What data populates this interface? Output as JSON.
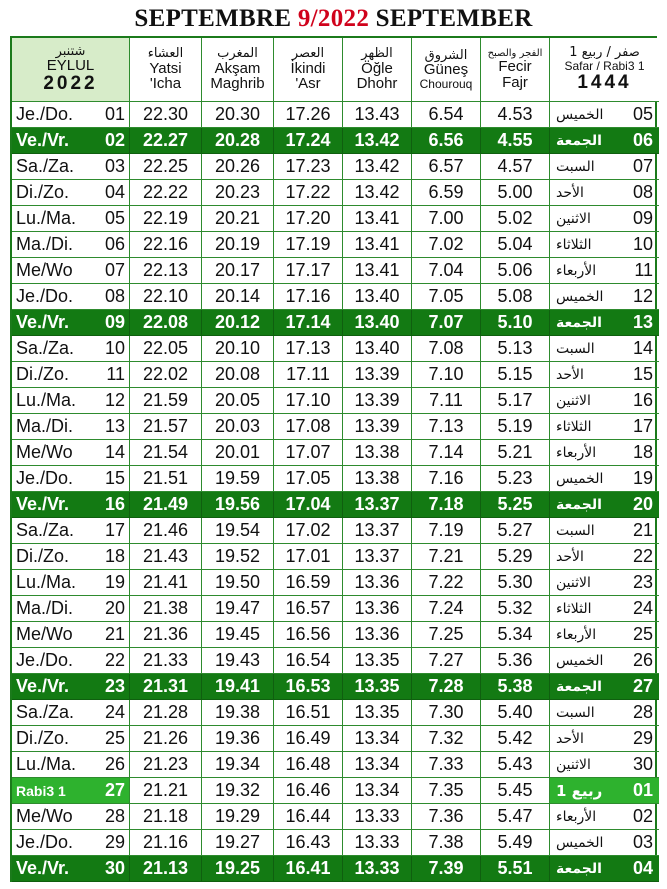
{
  "title": {
    "left": "SEPTEMBRE ",
    "red": "9/2022",
    "right": " SEPTEMBER"
  },
  "header": {
    "month": {
      "ar": "شتنبر",
      "tr": "EYLUL",
      "year": "2022"
    },
    "isha": {
      "ar": "العشاء",
      "l1": "Yatsi",
      "l2": "'Icha"
    },
    "maghrib": {
      "ar": "المغرب",
      "l1": "Akşam",
      "l2": "Maghrib"
    },
    "asr": {
      "ar": "العصر",
      "l1": "İkindi",
      "l2": "'Asr"
    },
    "dhohr": {
      "ar": "الظهر",
      "l1": "Öğle",
      "l2": "Dhohr"
    },
    "chourouq": {
      "ar": "الشروق",
      "l1": "Güneş",
      "l2": "Chourouq"
    },
    "fajr": {
      "ar": "الفجر والصبح",
      "l1": "Fecir",
      "l2": "Fajr"
    },
    "hijri": {
      "ar": "صفر / ربيع 1",
      "l1": "Safar / Rabi3 1",
      "year": "1444"
    }
  },
  "rows": [
    {
      "day": "Je./Do.",
      "d": "01",
      "isha": "22.30",
      "maghrib": "20.30",
      "asr": "17.26",
      "dhohr": "13.43",
      "sunrise": "6.54",
      "fajr": "4.53",
      "ar": "الخميس",
      "h": "05"
    },
    {
      "day": "Ve./Vr.",
      "d": "02",
      "isha": "22.27",
      "maghrib": "20.28",
      "asr": "17.24",
      "dhohr": "13.42",
      "sunrise": "6.56",
      "fajr": "4.55",
      "ar": "الجمعة",
      "h": "06",
      "fri": true
    },
    {
      "day": "Sa./Za.",
      "d": "03",
      "isha": "22.25",
      "maghrib": "20.26",
      "asr": "17.23",
      "dhohr": "13.42",
      "sunrise": "6.57",
      "fajr": "4.57",
      "ar": "السبت",
      "h": "07"
    },
    {
      "day": "Di./Zo.",
      "d": "04",
      "isha": "22.22",
      "maghrib": "20.23",
      "asr": "17.22",
      "dhohr": "13.42",
      "sunrise": "6.59",
      "fajr": "5.00",
      "ar": "الأحد",
      "h": "08"
    },
    {
      "day": "Lu./Ma.",
      "d": "05",
      "isha": "22.19",
      "maghrib": "20.21",
      "asr": "17.20",
      "dhohr": "13.41",
      "sunrise": "7.00",
      "fajr": "5.02",
      "ar": "الاثنين",
      "h": "09"
    },
    {
      "day": "Ma./Di.",
      "d": "06",
      "isha": "22.16",
      "maghrib": "20.19",
      "asr": "17.19",
      "dhohr": "13.41",
      "sunrise": "7.02",
      "fajr": "5.04",
      "ar": "الثلاثاء",
      "h": "10"
    },
    {
      "day": "Me/Wo",
      "d": "07",
      "isha": "22.13",
      "maghrib": "20.17",
      "asr": "17.17",
      "dhohr": "13.41",
      "sunrise": "7.04",
      "fajr": "5.06",
      "ar": "الأربعاء",
      "h": "11"
    },
    {
      "day": "Je./Do.",
      "d": "08",
      "isha": "22.10",
      "maghrib": "20.14",
      "asr": "17.16",
      "dhohr": "13.40",
      "sunrise": "7.05",
      "fajr": "5.08",
      "ar": "الخميس",
      "h": "12"
    },
    {
      "day": "Ve./Vr.",
      "d": "09",
      "isha": "22.08",
      "maghrib": "20.12",
      "asr": "17.14",
      "dhohr": "13.40",
      "sunrise": "7.07",
      "fajr": "5.10",
      "ar": "الجمعة",
      "h": "13",
      "fri": true
    },
    {
      "day": "Sa./Za.",
      "d": "10",
      "isha": "22.05",
      "maghrib": "20.10",
      "asr": "17.13",
      "dhohr": "13.40",
      "sunrise": "7.08",
      "fajr": "5.13",
      "ar": "السبت",
      "h": "14"
    },
    {
      "day": "Di./Zo.",
      "d": "11",
      "isha": "22.02",
      "maghrib": "20.08",
      "asr": "17.11",
      "dhohr": "13.39",
      "sunrise": "7.10",
      "fajr": "5.15",
      "ar": "الأحد",
      "h": "15"
    },
    {
      "day": "Lu./Ma.",
      "d": "12",
      "isha": "21.59",
      "maghrib": "20.05",
      "asr": "17.10",
      "dhohr": "13.39",
      "sunrise": "7.11",
      "fajr": "5.17",
      "ar": "الاثنين",
      "h": "16"
    },
    {
      "day": "Ma./Di.",
      "d": "13",
      "isha": "21.57",
      "maghrib": "20.03",
      "asr": "17.08",
      "dhohr": "13.39",
      "sunrise": "7.13",
      "fajr": "5.19",
      "ar": "الثلاثاء",
      "h": "17"
    },
    {
      "day": "Me/Wo",
      "d": "14",
      "isha": "21.54",
      "maghrib": "20.01",
      "asr": "17.07",
      "dhohr": "13.38",
      "sunrise": "7.14",
      "fajr": "5.21",
      "ar": "الأربعاء",
      "h": "18"
    },
    {
      "day": "Je./Do.",
      "d": "15",
      "isha": "21.51",
      "maghrib": "19.59",
      "asr": "17.05",
      "dhohr": "13.38",
      "sunrise": "7.16",
      "fajr": "5.23",
      "ar": "الخميس",
      "h": "19"
    },
    {
      "day": "Ve./Vr.",
      "d": "16",
      "isha": "21.49",
      "maghrib": "19.56",
      "asr": "17.04",
      "dhohr": "13.37",
      "sunrise": "7.18",
      "fajr": "5.25",
      "ar": "الجمعة",
      "h": "20",
      "fri": true
    },
    {
      "day": "Sa./Za.",
      "d": "17",
      "isha": "21.46",
      "maghrib": "19.54",
      "asr": "17.02",
      "dhohr": "13.37",
      "sunrise": "7.19",
      "fajr": "5.27",
      "ar": "السبت",
      "h": "21"
    },
    {
      "day": "Di./Zo.",
      "d": "18",
      "isha": "21.43",
      "maghrib": "19.52",
      "asr": "17.01",
      "dhohr": "13.37",
      "sunrise": "7.21",
      "fajr": "5.29",
      "ar": "الأحد",
      "h": "22"
    },
    {
      "day": "Lu./Ma.",
      "d": "19",
      "isha": "21.41",
      "maghrib": "19.50",
      "asr": "16.59",
      "dhohr": "13.36",
      "sunrise": "7.22",
      "fajr": "5.30",
      "ar": "الاثنين",
      "h": "23"
    },
    {
      "day": "Ma./Di.",
      "d": "20",
      "isha": "21.38",
      "maghrib": "19.47",
      "asr": "16.57",
      "dhohr": "13.36",
      "sunrise": "7.24",
      "fajr": "5.32",
      "ar": "الثلاثاء",
      "h": "24"
    },
    {
      "day": "Me/Wo",
      "d": "21",
      "isha": "21.36",
      "maghrib": "19.45",
      "asr": "16.56",
      "dhohr": "13.36",
      "sunrise": "7.25",
      "fajr": "5.34",
      "ar": "الأربعاء",
      "h": "25"
    },
    {
      "day": "Je./Do.",
      "d": "22",
      "isha": "21.33",
      "maghrib": "19.43",
      "asr": "16.54",
      "dhohr": "13.35",
      "sunrise": "7.27",
      "fajr": "5.36",
      "ar": "الخميس",
      "h": "26"
    },
    {
      "day": "Ve./Vr.",
      "d": "23",
      "isha": "21.31",
      "maghrib": "19.41",
      "asr": "16.53",
      "dhohr": "13.35",
      "sunrise": "7.28",
      "fajr": "5.38",
      "ar": "الجمعة",
      "h": "27",
      "fri": true
    },
    {
      "day": "Sa./Za.",
      "d": "24",
      "isha": "21.28",
      "maghrib": "19.38",
      "asr": "16.51",
      "dhohr": "13.35",
      "sunrise": "7.30",
      "fajr": "5.40",
      "ar": "السبت",
      "h": "28"
    },
    {
      "day": "Di./Zo.",
      "d": "25",
      "isha": "21.26",
      "maghrib": "19.36",
      "asr": "16.49",
      "dhohr": "13.34",
      "sunrise": "7.32",
      "fajr": "5.42",
      "ar": "الأحد",
      "h": "29"
    },
    {
      "day": "Lu./Ma.",
      "d": "26",
      "isha": "21.23",
      "maghrib": "19.34",
      "asr": "16.48",
      "dhohr": "13.34",
      "sunrise": "7.33",
      "fajr": "5.43",
      "ar": "الاثنين",
      "h": "30"
    },
    {
      "day": "Rabi3 1",
      "d": "27",
      "isha": "21.21",
      "maghrib": "19.32",
      "asr": "16.46",
      "dhohr": "13.34",
      "sunrise": "7.35",
      "fajr": "5.45",
      "ar": "ربيع 1",
      "h": "01",
      "rabi": true
    },
    {
      "day": "Me/Wo",
      "d": "28",
      "isha": "21.18",
      "maghrib": "19.29",
      "asr": "16.44",
      "dhohr": "13.33",
      "sunrise": "7.36",
      "fajr": "5.47",
      "ar": "الأربعاء",
      "h": "02"
    },
    {
      "day": "Je./Do.",
      "d": "29",
      "isha": "21.16",
      "maghrib": "19.27",
      "asr": "16.43",
      "dhohr": "13.33",
      "sunrise": "7.38",
      "fajr": "5.49",
      "ar": "الخميس",
      "h": "03"
    },
    {
      "day": "Ve./Vr.",
      "d": "30",
      "isha": "21.13",
      "maghrib": "19.25",
      "asr": "16.41",
      "dhohr": "13.33",
      "sunrise": "7.39",
      "fajr": "5.51",
      "ar": "الجمعة",
      "h": "04",
      "fri": true
    }
  ]
}
